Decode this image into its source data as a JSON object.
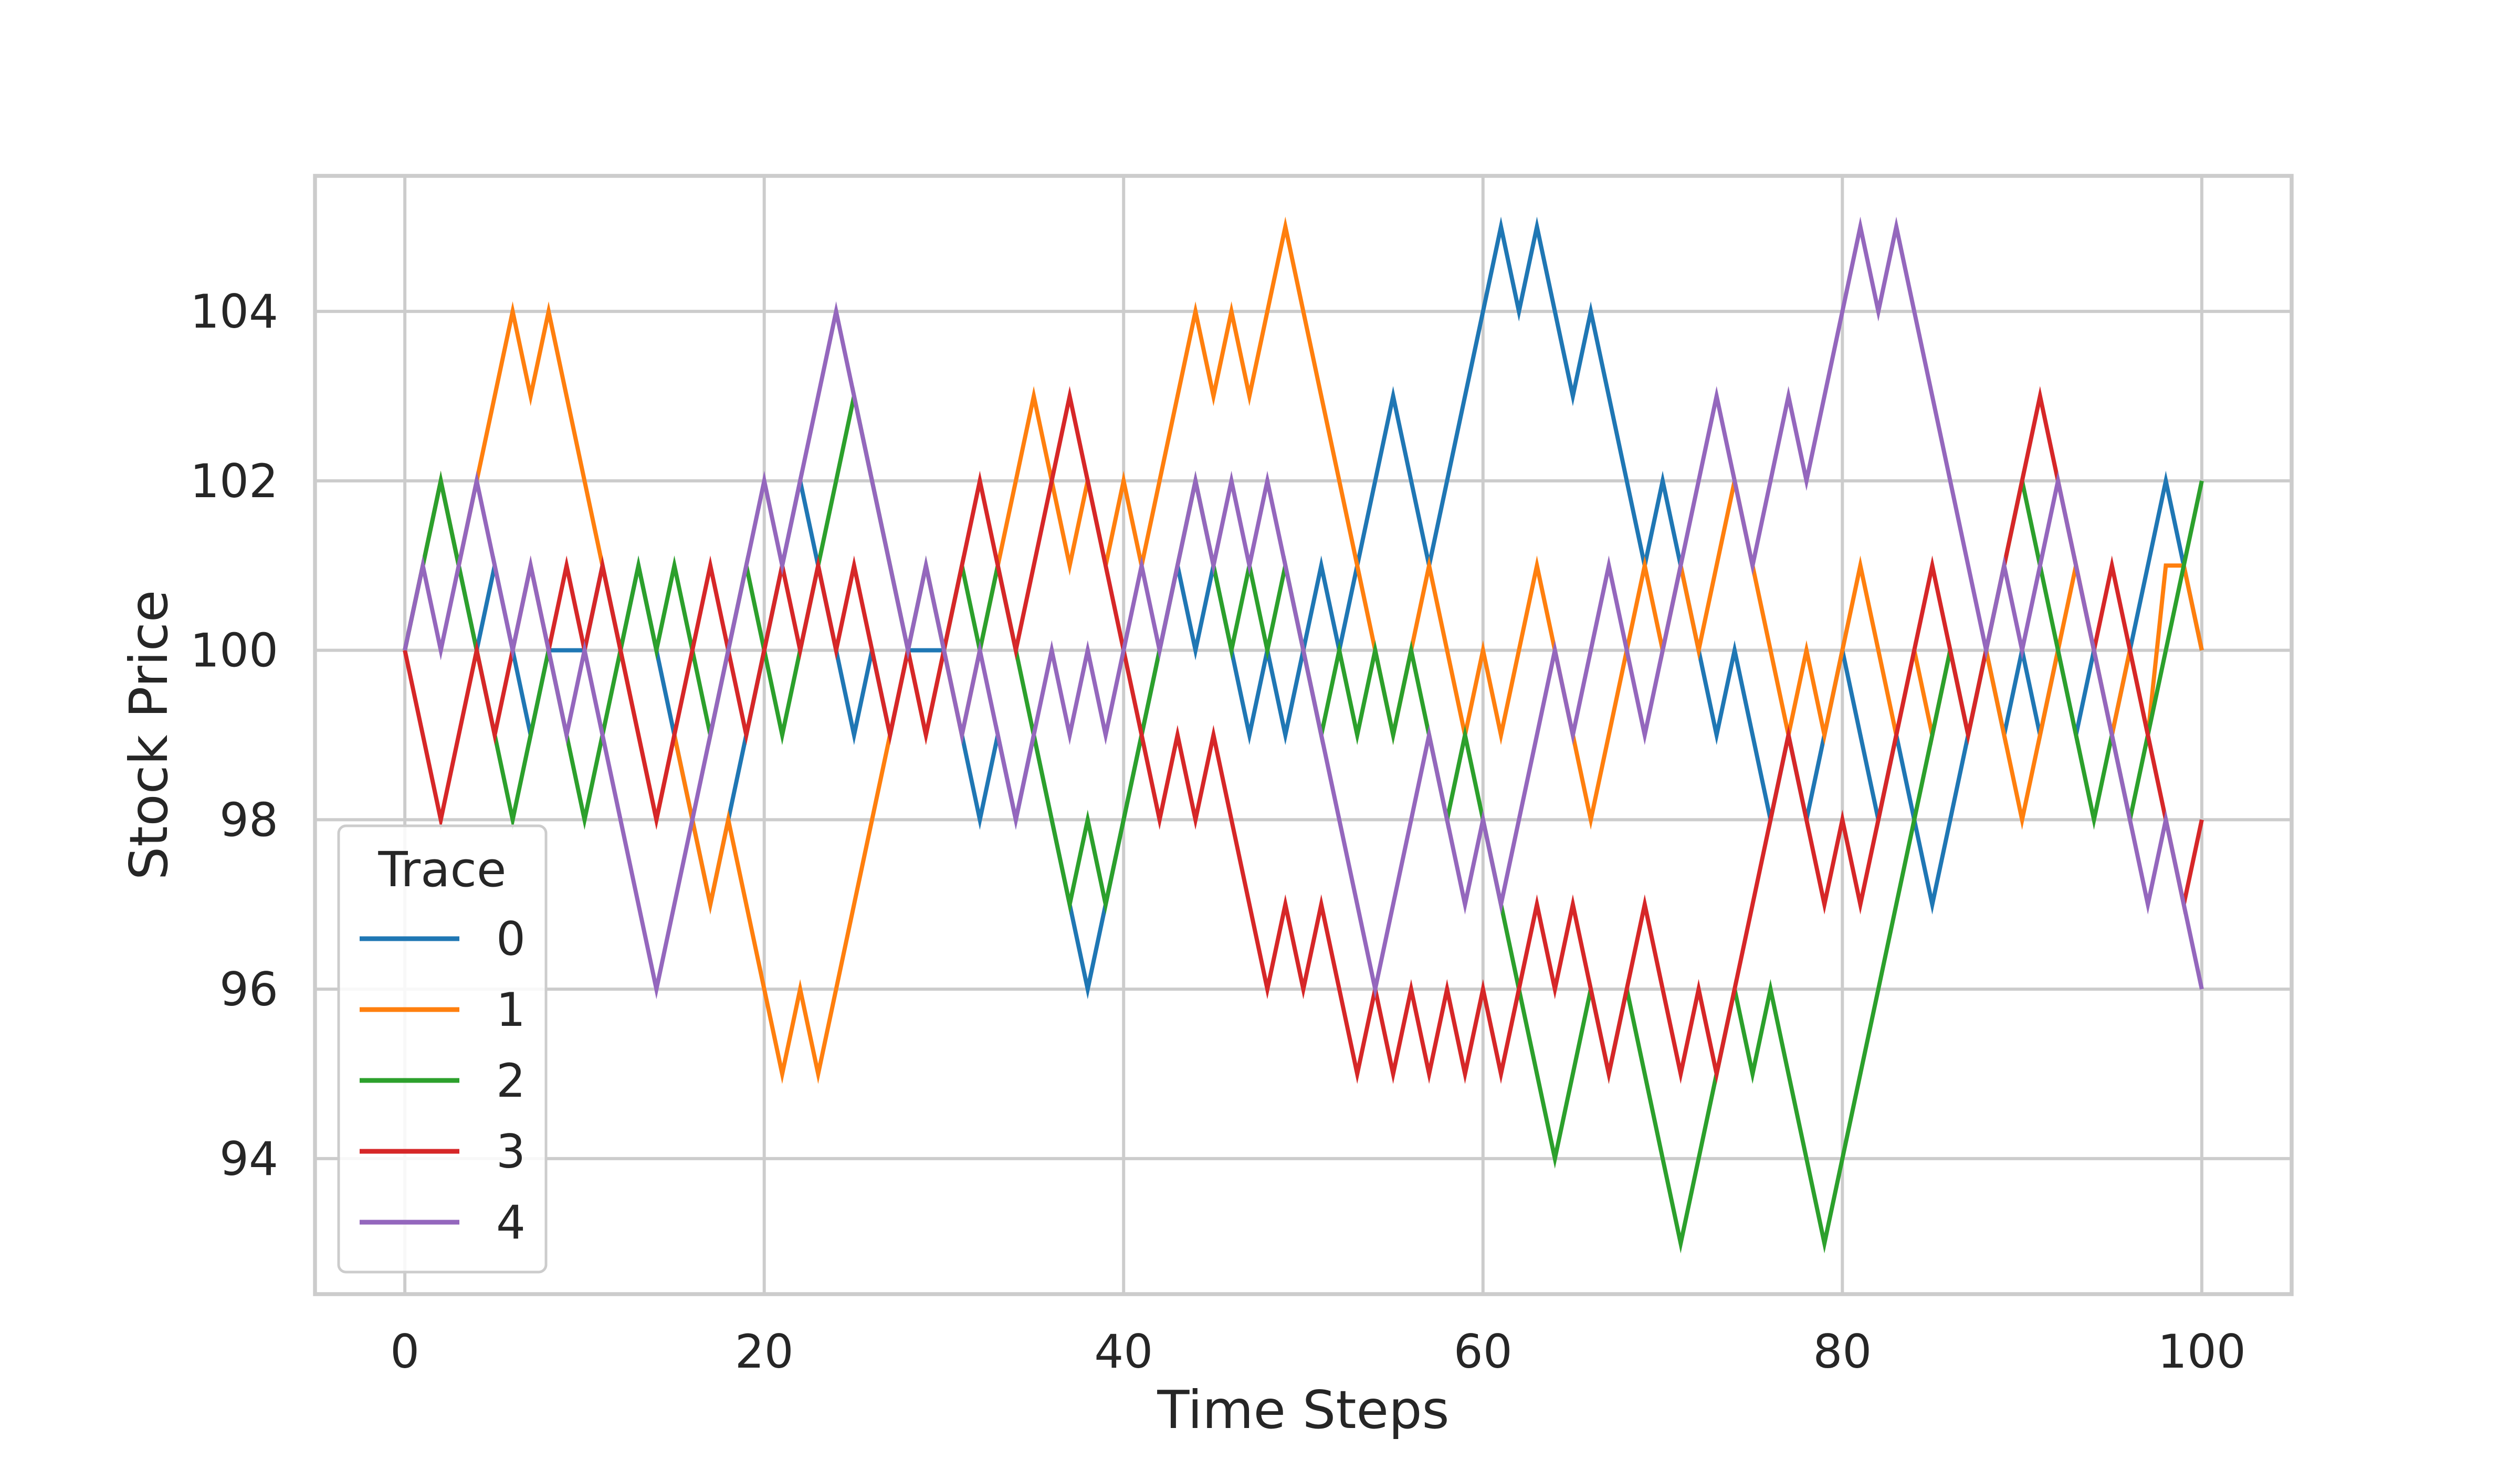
{
  "chart_data": {
    "type": "line",
    "title": "",
    "xlabel": "Time Steps",
    "ylabel": "Stock Price",
    "xlim": [
      -5,
      105
    ],
    "ylim": [
      92.4,
      105.6
    ],
    "xticks": [
      0,
      20,
      40,
      60,
      80,
      100
    ],
    "yticks": [
      94,
      96,
      98,
      100,
      102,
      104
    ],
    "grid": true,
    "legend": {
      "title": "Trace",
      "position": "lower-left"
    },
    "x": [
      0,
      1,
      2,
      3,
      4,
      5,
      6,
      7,
      8,
      9,
      10,
      11,
      12,
      13,
      14,
      15,
      16,
      17,
      18,
      19,
      20,
      21,
      22,
      23,
      24,
      25,
      26,
      27,
      28,
      29,
      30,
      31,
      32,
      33,
      34,
      35,
      36,
      37,
      38,
      39,
      40,
      41,
      42,
      43,
      44,
      45,
      46,
      47,
      48,
      49,
      50,
      51,
      52,
      53,
      54,
      55,
      56,
      57,
      58,
      59,
      60,
      61,
      62,
      63,
      64,
      65,
      66,
      67,
      68,
      69,
      70,
      71,
      72,
      73,
      74,
      75,
      76,
      77,
      78,
      79,
      80,
      81,
      82,
      83,
      84,
      85,
      86,
      87,
      88,
      89,
      90,
      91,
      92,
      93,
      94,
      95,
      96,
      97,
      98,
      99,
      100
    ],
    "series": [
      {
        "name": "0",
        "color": "#1f77b4",
        "values": [
          100,
          101,
          102,
          101,
          100,
          101,
          100,
          99,
          100,
          100,
          100,
          101,
          100,
          101,
          100,
          99,
          98,
          97,
          98,
          99,
          100,
          101,
          102,
          101,
          100,
          99,
          100,
          99,
          100,
          100,
          100,
          99,
          98,
          99,
          98,
          99,
          98,
          97,
          96,
          97,
          98,
          99,
          100,
          101,
          100,
          101,
          100,
          99,
          100,
          99,
          100,
          101,
          100,
          101,
          102,
          103,
          102,
          101,
          102,
          103,
          104,
          105,
          104,
          105,
          104,
          103,
          104,
          103,
          102,
          101,
          102,
          101,
          100,
          99,
          100,
          99,
          98,
          99,
          98,
          99,
          100,
          99,
          98,
          99,
          98,
          97,
          98,
          99,
          100,
          99,
          100,
          99,
          100,
          99,
          100,
          99,
          100,
          101,
          102,
          101,
          100
        ]
      },
      {
        "name": "1",
        "color": "#ff7f0e",
        "values": [
          100,
          101,
          102,
          101,
          102,
          103,
          104,
          103,
          104,
          103,
          102,
          101,
          100,
          99,
          98,
          99,
          98,
          97,
          98,
          97,
          96,
          95,
          96,
          95,
          96,
          97,
          98,
          99,
          100,
          99,
          100,
          99,
          100,
          101,
          102,
          103,
          102,
          101,
          102,
          101,
          102,
          101,
          102,
          103,
          104,
          103,
          104,
          103,
          104,
          105,
          104,
          103,
          102,
          101,
          100,
          99,
          100,
          101,
          100,
          99,
          100,
          99,
          100,
          101,
          100,
          99,
          98,
          99,
          100,
          101,
          100,
          101,
          100,
          101,
          102,
          101,
          100,
          99,
          100,
          99,
          100,
          101,
          100,
          99,
          100,
          99,
          100,
          99,
          100,
          99,
          98,
          99,
          100,
          101,
          100,
          99,
          100,
          99,
          101,
          101,
          100
        ]
      },
      {
        "name": "2",
        "color": "#2ca02c",
        "values": [
          100,
          101,
          102,
          101,
          100,
          99,
          98,
          99,
          100,
          99,
          98,
          99,
          100,
          101,
          100,
          101,
          100,
          99,
          100,
          101,
          100,
          99,
          100,
          101,
          102,
          103,
          102,
          101,
          100,
          101,
          100,
          101,
          100,
          101,
          100,
          99,
          98,
          97,
          98,
          97,
          98,
          99,
          100,
          101,
          102,
          101,
          100,
          101,
          100,
          101,
          100,
          99,
          100,
          99,
          100,
          99,
          100,
          99,
          98,
          99,
          98,
          97,
          96,
          95,
          94,
          95,
          96,
          95,
          96,
          95,
          94,
          93,
          94,
          95,
          96,
          95,
          96,
          95,
          94,
          93,
          94,
          95,
          96,
          97,
          98,
          99,
          100,
          99,
          100,
          101,
          102,
          101,
          100,
          99,
          98,
          99,
          98,
          99,
          100,
          101,
          102
        ]
      },
      {
        "name": "3",
        "color": "#d62728",
        "values": [
          100,
          99,
          98,
          99,
          100,
          99,
          100,
          101,
          100,
          101,
          100,
          101,
          100,
          99,
          98,
          99,
          100,
          101,
          100,
          99,
          100,
          101,
          100,
          101,
          100,
          101,
          100,
          99,
          100,
          99,
          100,
          101,
          102,
          101,
          100,
          101,
          102,
          103,
          102,
          101,
          100,
          99,
          98,
          99,
          98,
          99,
          98,
          97,
          96,
          97,
          96,
          97,
          96,
          95,
          96,
          95,
          96,
          95,
          96,
          95,
          96,
          95,
          96,
          97,
          96,
          97,
          96,
          95,
          96,
          97,
          96,
          95,
          96,
          95,
          96,
          97,
          98,
          99,
          98,
          97,
          98,
          97,
          98,
          99,
          100,
          101,
          100,
          99,
          100,
          101,
          102,
          103,
          102,
          101,
          100,
          101,
          100,
          99,
          98,
          97,
          98
        ]
      },
      {
        "name": "4",
        "color": "#9467bd",
        "values": [
          100,
          101,
          100,
          101,
          102,
          101,
          100,
          101,
          100,
          99,
          100,
          99,
          98,
          97,
          96,
          97,
          98,
          99,
          100,
          101,
          102,
          101,
          102,
          103,
          104,
          103,
          102,
          101,
          100,
          101,
          100,
          99,
          100,
          99,
          98,
          99,
          100,
          99,
          100,
          99,
          100,
          101,
          100,
          101,
          102,
          101,
          102,
          101,
          102,
          101,
          100,
          99,
          98,
          97,
          96,
          97,
          98,
          99,
          98,
          97,
          98,
          97,
          98,
          99,
          100,
          99,
          100,
          101,
          100,
          99,
          100,
          101,
          102,
          103,
          102,
          101,
          102,
          103,
          102,
          103,
          104,
          105,
          104,
          105,
          104,
          103,
          102,
          101,
          100,
          101,
          100,
          101,
          102,
          101,
          100,
          99,
          98,
          97,
          98,
          97,
          96
        ]
      }
    ]
  }
}
